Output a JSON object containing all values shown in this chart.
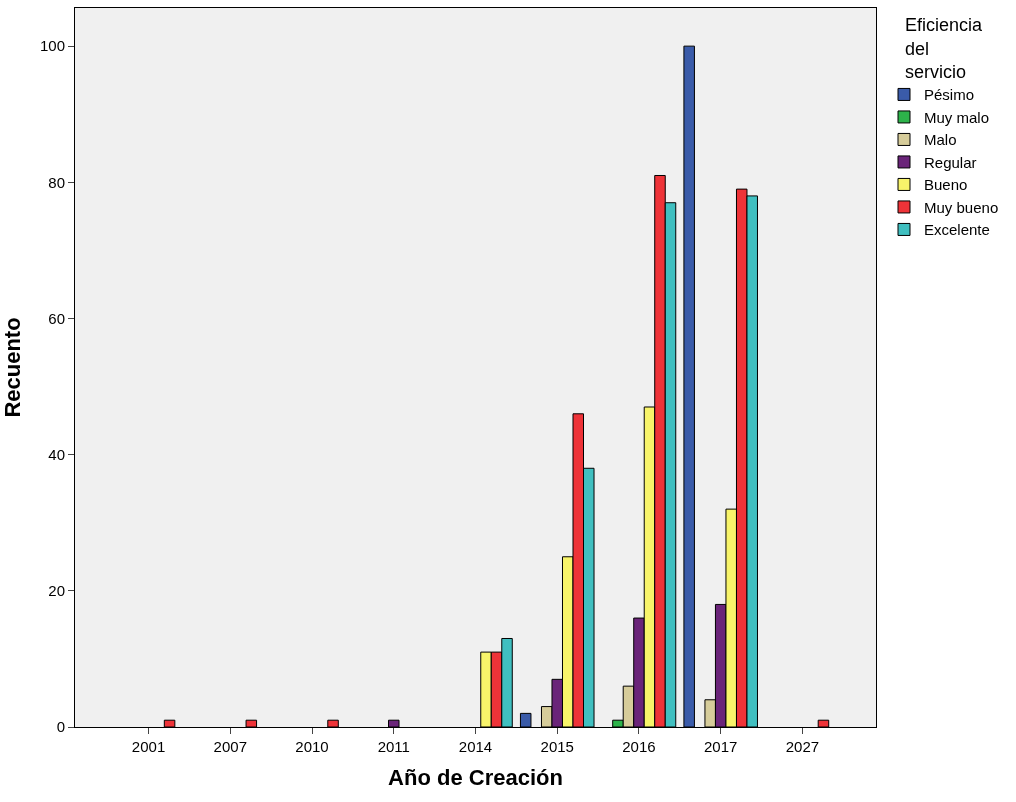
{
  "chart_data": {
    "type": "bar",
    "xlabel": "Año de Creación",
    "ylabel": "Recuento",
    "legend_title": "Eficiencia del servicio",
    "legend": "right",
    "grid": false,
    "categories": [
      "2001",
      "2007",
      "2010",
      "2011",
      "2014",
      "2015",
      "2016",
      "2017",
      "2027"
    ],
    "ylim": [
      0,
      105.6
    ],
    "yticks": [
      0,
      20,
      40,
      60,
      80,
      100
    ],
    "series": [
      {
        "name": "Pésimo",
        "color": "#3a5ba9",
        "values": [
          null,
          null,
          null,
          null,
          null,
          2,
          null,
          100,
          null
        ]
      },
      {
        "name": "Muy malo",
        "color": "#2db34a",
        "values": [
          null,
          null,
          null,
          null,
          null,
          null,
          1,
          null,
          null
        ]
      },
      {
        "name": "Malo",
        "color": "#d6cc9a",
        "values": [
          null,
          null,
          null,
          null,
          null,
          3,
          6,
          4,
          null
        ]
      },
      {
        "name": "Regular",
        "color": "#6a2479",
        "values": [
          null,
          null,
          null,
          1,
          null,
          7,
          16,
          18,
          null
        ]
      },
      {
        "name": "Bueno",
        "color": "#f8f46a",
        "values": [
          null,
          null,
          null,
          null,
          11,
          25,
          47,
          32,
          null
        ]
      },
      {
        "name": "Muy bueno",
        "color": "#ee3338",
        "values": [
          1,
          1,
          1,
          null,
          11,
          46,
          81,
          79,
          1
        ]
      },
      {
        "name": "Excelente",
        "color": "#40bfc0",
        "values": [
          null,
          null,
          null,
          null,
          13,
          38,
          77,
          78,
          null
        ]
      }
    ]
  }
}
